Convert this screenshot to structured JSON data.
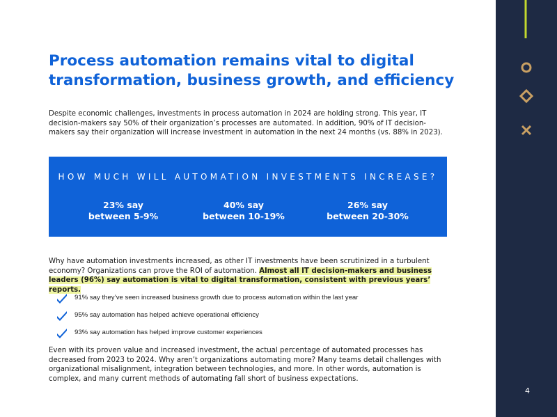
{
  "header": {
    "title": "Process automation remains vital to digital transformation, business growth, and efficiency"
  },
  "intro": "Despite economic challenges, investments in process automation in 2024 are holding strong. This year, IT decision-makers say 50% of their organization’s processes are automated. In addition, 90% of IT decision-makers say their organization will increase investment in automation in the next 24 months (vs. 88% in 2023).",
  "callout": {
    "title": "HOW MUCH WILL AUTOMATION INVESTMENTS INCREASE?",
    "stats": [
      {
        "line1": "23% say",
        "line2": "between 5-9%"
      },
      {
        "line1": "40% say",
        "line2": "between 10-19%"
      },
      {
        "line1": "26% say",
        "line2": "between 20-30%"
      }
    ]
  },
  "body": {
    "text": "Why have automation investments increased, as other IT investments have been scrutinized in a turbulent economy? Organizations can prove the ROI of automation.",
    "highlight": "Almost all IT decision-makers and business leaders (96%) say automation is vital to digital transformation, consistent with previous years’ reports."
  },
  "checklist": [
    "91% say they’ve seen increased business growth due to process automation within the last year",
    "95% say automation has helped achieve operational efficiency",
    "93% say automation has helped improve customer experiences"
  ],
  "closing": "Even with its proven value and increased investment, the actual percentage of automated processes has decreased from 2023 to 2024. Why aren’t organizations automating more? Many teams detail challenges with organizational misalignment, integration between technologies, and more. In other words, automation is complex, and many current methods of automating fall short of business expectations.",
  "page_number": "4"
}
